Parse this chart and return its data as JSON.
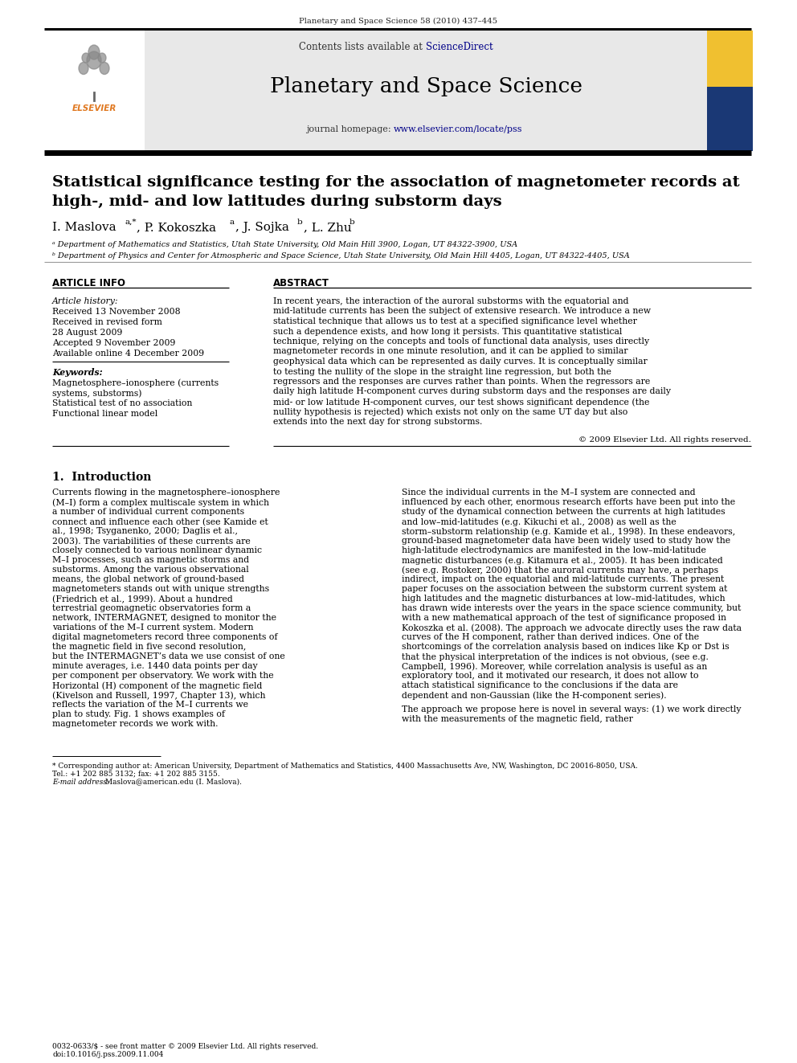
{
  "journal_ref": "Planetary and Space Science 58 (2010) 437–445",
  "journal_name": "Planetary and Space Science",
  "contents_text": "Contents lists available at ",
  "sciencedirect_text": "ScienceDirect",
  "homepage_prefix": "journal homepage: ",
  "homepage_url": "www.elsevier.com/locate/pss",
  "paper_title_line1": "Statistical significance testing for the association of magnetometer records at",
  "paper_title_line2": "high-, mid- and low latitudes during substorm days",
  "authors_main": "I. Maslova",
  "authors_rest": ", P. Kokoszka",
  "affil_a": "ᵃ Department of Mathematics and Statistics, Utah State University, Old Main Hill 3900, Logan, UT 84322-3900, USA",
  "affil_b": "ᵇ Department of Physics and Center for Atmospheric and Space Science, Utah State University, Old Main Hill 4405, Logan, UT 84322-4405, USA",
  "article_info_header": "ARTICLE INFO",
  "abstract_header": "ABSTRACT",
  "article_history_label": "Article history:",
  "received": "Received 13 November 2008",
  "revised": "Received in revised form",
  "revised2": "28 August 2009",
  "accepted": "Accepted 9 November 2009",
  "available": "Available online 4 December 2009",
  "keywords_label": "Keywords:",
  "keyword1": "Magnetosphere–ionosphere (currents",
  "keyword2": "systems, substorms)",
  "keyword3": "Statistical test of no association",
  "keyword4": "Functional linear model",
  "abstract_text": "In recent years, the interaction of the auroral substorms with the equatorial and mid-latitude currents has been the subject of extensive research. We introduce a new statistical technique that allows us to test at a specified significance level whether such a dependence exists, and how long it persists. This quantitative statistical technique, relying on the concepts and tools of functional data analysis, uses directly magnetometer records in one minute resolution, and it can be applied to similar geophysical data which can be represented as daily curves. It is conceptually similar to testing the nullity of the slope in the straight line regression, but both the regressors and the responses are curves rather than points. When the regressors are daily high latitude H-component curves during substorm days and the responses are daily mid- or low latitude H-component curves, our test shows significant dependence (the nullity hypothesis is rejected) which exists not only on the same UT day but also extends into the next day for strong substorms.",
  "copyright": "© 2009 Elsevier Ltd. All rights reserved.",
  "section1_title": "1.  Introduction",
  "intro_col1_para1": "    Currents flowing in the magnetosphere–ionosphere (M–I) form a complex multiscale system in which a number of individual current components connect and influence each other (see Kamide et al., 1998; Tsyganenko, 2000; Daglis et al., 2003). The variabilities of these currents are closely connected to various nonlinear dynamic M–I processes, such as magnetic storms and substorms. Among the various observational means, the global network of ground-based magnetometers stands out with unique strengths (Friedrich et al., 1999). About a hundred terrestrial geomagnetic observatories form a network, INTERMAGNET, designed to monitor the variations of the M–I current system. Modern digital magnetometers record three components of the magnetic field in five second resolution, but the INTERMAGNET’s data we use consist of one minute averages, i.e. 1440 data points per day per component per observatory. We work with the Horizontal (H) component of the magnetic field (Kivelson and Russell, 1997, Chapter 13), which reflects the variation of the M–I currents we plan to study. Fig. 1 shows examples of magnetometer records we work with.",
  "intro_col2_para1": "    Since the individual currents in the M–I system are connected and influenced by each other, enormous research efforts have been put into the study of the dynamical connection between the currents at high latitudes and low–mid-latitudes (e.g. Kikuchi et al., 2008) as well as the storm–substorm relationship (e.g. Kamide et al., 1998). In these endeavors, ground-based magnetometer data have been widely used to study how the high-latitude electrodynamics are manifested in the low–mid-latitude magnetic disturbances (e.g. Kitamura et al., 2005). It has been indicated (see e.g. Rostoker, 2000) that the auroral currents may have, a perhaps indirect, impact on the equatorial and mid-latitude currents. The present paper focuses on the association between the substorm current system at high latitudes and the magnetic disturbances at low–mid-latitudes, which has drawn wide interests over the years in the space science community, but with a new mathematical approach of the test of significance proposed in Kokoszka et al. (2008). The approach we advocate directly uses the raw data curves of the H component, rather than derived indices. One of the shortcomings of the correlation analysis based on indices like Kp or Dst is that the physical interpretation of the indices is not obvious, (see e.g. Campbell, 1996). Moreover, while correlation analysis is useful as an exploratory tool, and it motivated our research, it does not allow to attach statistical significance to the conclusions if the data are dependent and non-Gaussian (like the H-component series).",
  "intro_col2_para2": "    The approach we propose here is novel in several ways: (1) we work directly with the measurements of the magnetic field, rather",
  "footnote_star": "* Corresponding author at: American University, Department of Mathematics and Statistics, 4400 Massachusetts Ave, NW, Washington, DC 20016-8050, USA.",
  "footnote_tel": "Tel.: +1 202 885 3132; fax: +1 202 885 3155.",
  "footnote_email_label": "E-mail address:",
  "footnote_email": " Maslova@american.edu (I. Maslova).",
  "issn_line1": "0032-0633/$ - see front matter © 2009 Elsevier Ltd. All rights reserved.",
  "issn_line2": "doi:10.1016/j.pss.2009.11.004",
  "bg_color": "#e8e8e8",
  "link_color": "#000088",
  "elsevier_color": "#e07820"
}
